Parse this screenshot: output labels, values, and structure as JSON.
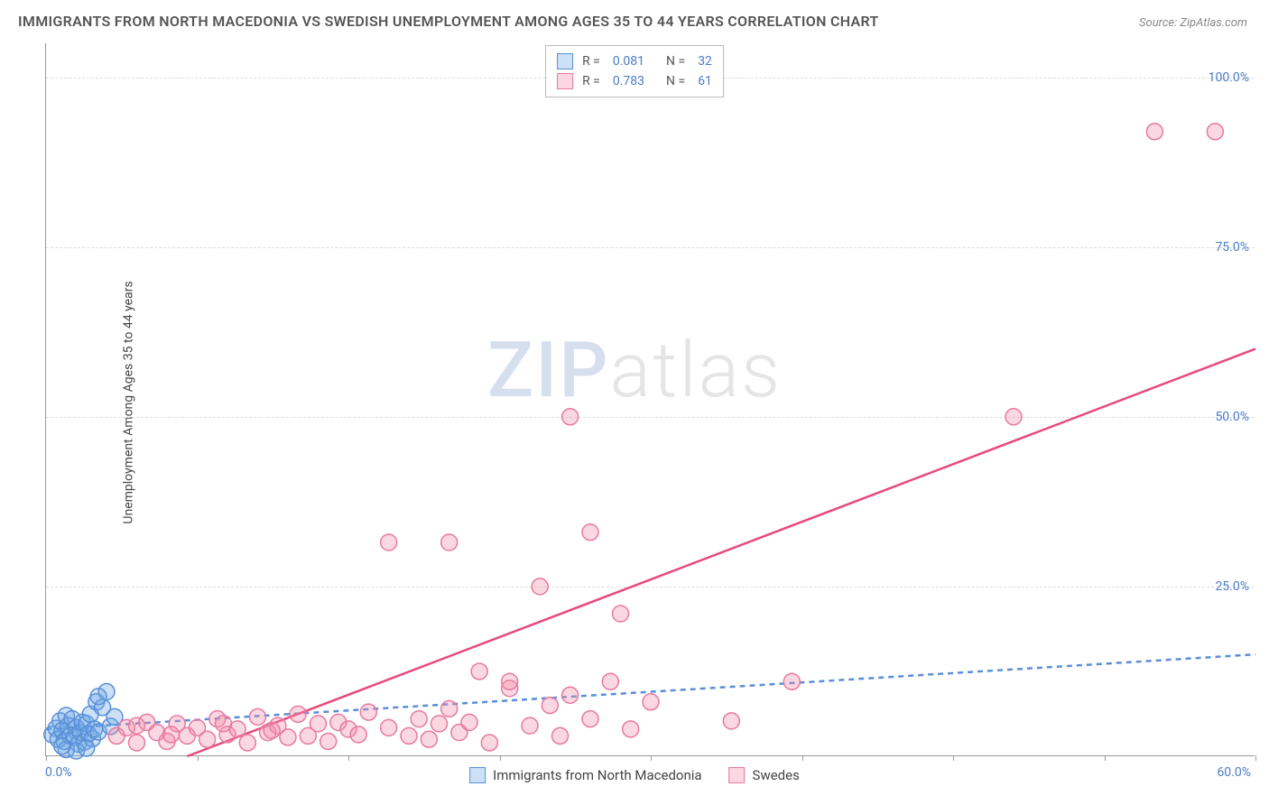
{
  "title": "IMMIGRANTS FROM NORTH MACEDONIA VS SWEDISH UNEMPLOYMENT AMONG AGES 35 TO 44 YEARS CORRELATION CHART",
  "source": "Source: ZipAtlas.com",
  "y_axis_label": "Unemployment Among Ages 35 to 44 years",
  "watermark": {
    "part1": "ZIP",
    "part2": "atlas"
  },
  "chart": {
    "type": "scatter",
    "background_color": "#ffffff",
    "grid_color": "#dddddd",
    "axis_color": "#999999",
    "tick_color": "#4a7bc8",
    "xlim": [
      0,
      60
    ],
    "ylim": [
      0,
      105
    ],
    "x_ticks": [
      0,
      7.5,
      15,
      22.5,
      30,
      37.5,
      45,
      52.5,
      60
    ],
    "x_tick_labels": {
      "min": "0.0%",
      "max": "60.0%"
    },
    "y_gridlines": [
      25,
      50,
      75,
      100
    ],
    "y_tick_labels": [
      "25.0%",
      "50.0%",
      "75.0%",
      "100.0%"
    ],
    "marker_radius": 9,
    "marker_stroke_width": 1.5,
    "trend_line_width": 2.5,
    "series": [
      {
        "name": "Immigrants from North Macedonia",
        "fill": "rgba(110,165,230,0.35)",
        "stroke": "#5a8fd8",
        "R": "0.081",
        "N": "32",
        "trend": {
          "x1": 0,
          "y1": 4,
          "x2": 60,
          "y2": 15,
          "dash": "6 5",
          "color": "#5a8fd8"
        },
        "points": [
          [
            0.3,
            3.2
          ],
          [
            0.5,
            4.1
          ],
          [
            0.6,
            2.5
          ],
          [
            0.7,
            5.2
          ],
          [
            0.8,
            3.8
          ],
          [
            0.9,
            2.2
          ],
          [
            1.0,
            6.0
          ],
          [
            1.1,
            4.5
          ],
          [
            1.2,
            3.0
          ],
          [
            1.3,
            5.5
          ],
          [
            1.4,
            2.8
          ],
          [
            1.5,
            4.2
          ],
          [
            1.6,
            1.8
          ],
          [
            1.7,
            3.5
          ],
          [
            1.8,
            5.0
          ],
          [
            1.9,
            2.1
          ],
          [
            2.0,
            4.8
          ],
          [
            2.1,
            3.3
          ],
          [
            2.2,
            6.2
          ],
          [
            2.3,
            2.6
          ],
          [
            2.4,
            4.0
          ],
          [
            2.5,
            8.0
          ],
          [
            2.6,
            3.6
          ],
          [
            2.8,
            7.2
          ],
          [
            3.0,
            9.5
          ],
          [
            3.2,
            4.4
          ],
          [
            3.4,
            5.8
          ],
          [
            1.0,
            1.0
          ],
          [
            1.5,
            0.8
          ],
          [
            0.8,
            1.5
          ],
          [
            2.0,
            1.2
          ],
          [
            2.6,
            8.8
          ]
        ]
      },
      {
        "name": "Swedes",
        "fill": "rgba(240,140,170,0.35)",
        "stroke": "#e87aa0",
        "R": "0.783",
        "N": "61",
        "trend": {
          "x1": 7,
          "y1": 0,
          "x2": 60,
          "y2": 60,
          "dash": "",
          "color": "#e84a7a"
        },
        "points": [
          [
            3.5,
            3.0
          ],
          [
            4.0,
            4.2
          ],
          [
            4.5,
            2.0
          ],
          [
            5.0,
            5.0
          ],
          [
            5.5,
            3.5
          ],
          [
            6.0,
            2.2
          ],
          [
            6.5,
            4.8
          ],
          [
            7.0,
            3.0
          ],
          [
            7.5,
            4.2
          ],
          [
            8.0,
            2.5
          ],
          [
            8.5,
            5.5
          ],
          [
            9.0,
            3.2
          ],
          [
            9.5,
            4.0
          ],
          [
            10.0,
            2.0
          ],
          [
            10.5,
            5.8
          ],
          [
            11.0,
            3.5
          ],
          [
            11.5,
            4.5
          ],
          [
            12.0,
            2.8
          ],
          [
            12.5,
            6.2
          ],
          [
            13.0,
            3.0
          ],
          [
            13.5,
            4.8
          ],
          [
            14.0,
            2.2
          ],
          [
            14.5,
            5.0
          ],
          [
            15.0,
            4.0
          ],
          [
            15.5,
            3.2
          ],
          [
            16.0,
            6.5
          ],
          [
            17.0,
            4.2
          ],
          [
            17.0,
            31.5
          ],
          [
            18.0,
            3.0
          ],
          [
            18.5,
            5.5
          ],
          [
            19.0,
            2.5
          ],
          [
            19.5,
            4.8
          ],
          [
            20.0,
            7.0
          ],
          [
            20.0,
            31.5
          ],
          [
            20.5,
            3.5
          ],
          [
            21.0,
            5.0
          ],
          [
            21.5,
            12.5
          ],
          [
            22.0,
            2.0
          ],
          [
            23.0,
            10.0
          ],
          [
            23.0,
            11.0
          ],
          [
            24.0,
            4.5
          ],
          [
            24.5,
            25.0
          ],
          [
            25.0,
            7.5
          ],
          [
            25.5,
            3.0
          ],
          [
            26.0,
            9.0
          ],
          [
            26.0,
            50.0
          ],
          [
            27.0,
            5.5
          ],
          [
            27.0,
            33.0
          ],
          [
            28.0,
            11.0
          ],
          [
            28.5,
            21.0
          ],
          [
            29.0,
            4.0
          ],
          [
            30.0,
            8.0
          ],
          [
            34.0,
            5.2
          ],
          [
            37.0,
            11.0
          ],
          [
            48.0,
            50.0
          ],
          [
            55.0,
            92.0
          ],
          [
            58.0,
            92.0
          ],
          [
            4.5,
            4.5
          ],
          [
            6.2,
            3.2
          ],
          [
            8.8,
            4.8
          ],
          [
            11.2,
            3.8
          ]
        ]
      }
    ]
  },
  "legend_top": [
    {
      "swatch_fill": "rgba(110,165,230,0.35)",
      "swatch_stroke": "#5a8fd8",
      "r_label": "R =",
      "r_val": "0.081",
      "n_label": "N =",
      "n_val": "32"
    },
    {
      "swatch_fill": "rgba(240,140,170,0.35)",
      "swatch_stroke": "#e87aa0",
      "r_label": "R =",
      "r_val": "0.783",
      "n_label": "N =",
      "n_val": "61"
    }
  ],
  "legend_bottom": [
    {
      "swatch_fill": "rgba(110,165,230,0.35)",
      "swatch_stroke": "#5a8fd8",
      "label": "Immigrants from North Macedonia"
    },
    {
      "swatch_fill": "rgba(240,140,170,0.35)",
      "swatch_stroke": "#e87aa0",
      "label": "Swedes"
    }
  ]
}
